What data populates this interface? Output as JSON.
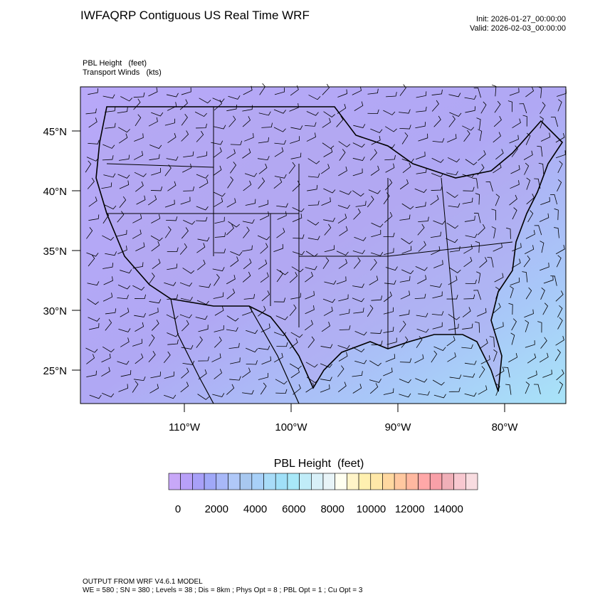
{
  "header": {
    "title": "IWFAQRP Contiguous US Real Time WRF",
    "init": "Init: 2026-01-27_00:00:00",
    "valid": "Valid: 2026-02-03_00:00:00",
    "field": "PBL Height   (feet)",
    "winds": "Transport Winds   (kts)"
  },
  "map": {
    "lat_ticks": [
      {
        "value": 45,
        "label": "45°N"
      },
      {
        "value": 40,
        "label": "40°N"
      },
      {
        "value": 35,
        "label": "35°N"
      },
      {
        "value": 30,
        "label": "30°N"
      },
      {
        "value": 25,
        "label": "25°N"
      }
    ],
    "lon_ticks": [
      {
        "value": -110,
        "label": "110°W"
      },
      {
        "value": -100,
        "label": "100°W"
      },
      {
        "value": -90,
        "label": "90°W"
      },
      {
        "value": -80,
        "label": "80°W"
      }
    ]
  },
  "colorbar": {
    "title": "PBL Height  (feet)",
    "ticks": [
      0,
      2000,
      4000,
      6000,
      8000,
      10000,
      12000,
      14000
    ],
    "colors": [
      "#c8a8f8",
      "#b8a0f8",
      "#a8a0f8",
      "#a0a8f8",
      "#a8b8f8",
      "#b0c8f8",
      "#a8c8f0",
      "#a8d0f8",
      "#a8dcf8",
      "#a0e0f8",
      "#a8e8f8",
      "#c0ecf8",
      "#d8f0f8",
      "#e8f4f8",
      "#fffff0",
      "#fff4c8",
      "#fff0b0",
      "#ffe8a8",
      "#ffd8a0",
      "#ffc8a0",
      "#ffb8a0",
      "#ffa8a8",
      "#f8a0a8",
      "#f0b0b8",
      "#f8c8d0",
      "#f8dce0"
    ]
  },
  "footer": {
    "line1": "OUTPUT FROM WRF V4.6.1 MODEL",
    "line2": "WE = 580 ; SN = 380 ; Levels = 38 ; Dis = 8km ; Phys Opt = 8 ; PBL Opt = 1 ; Cu Opt = 3"
  }
}
